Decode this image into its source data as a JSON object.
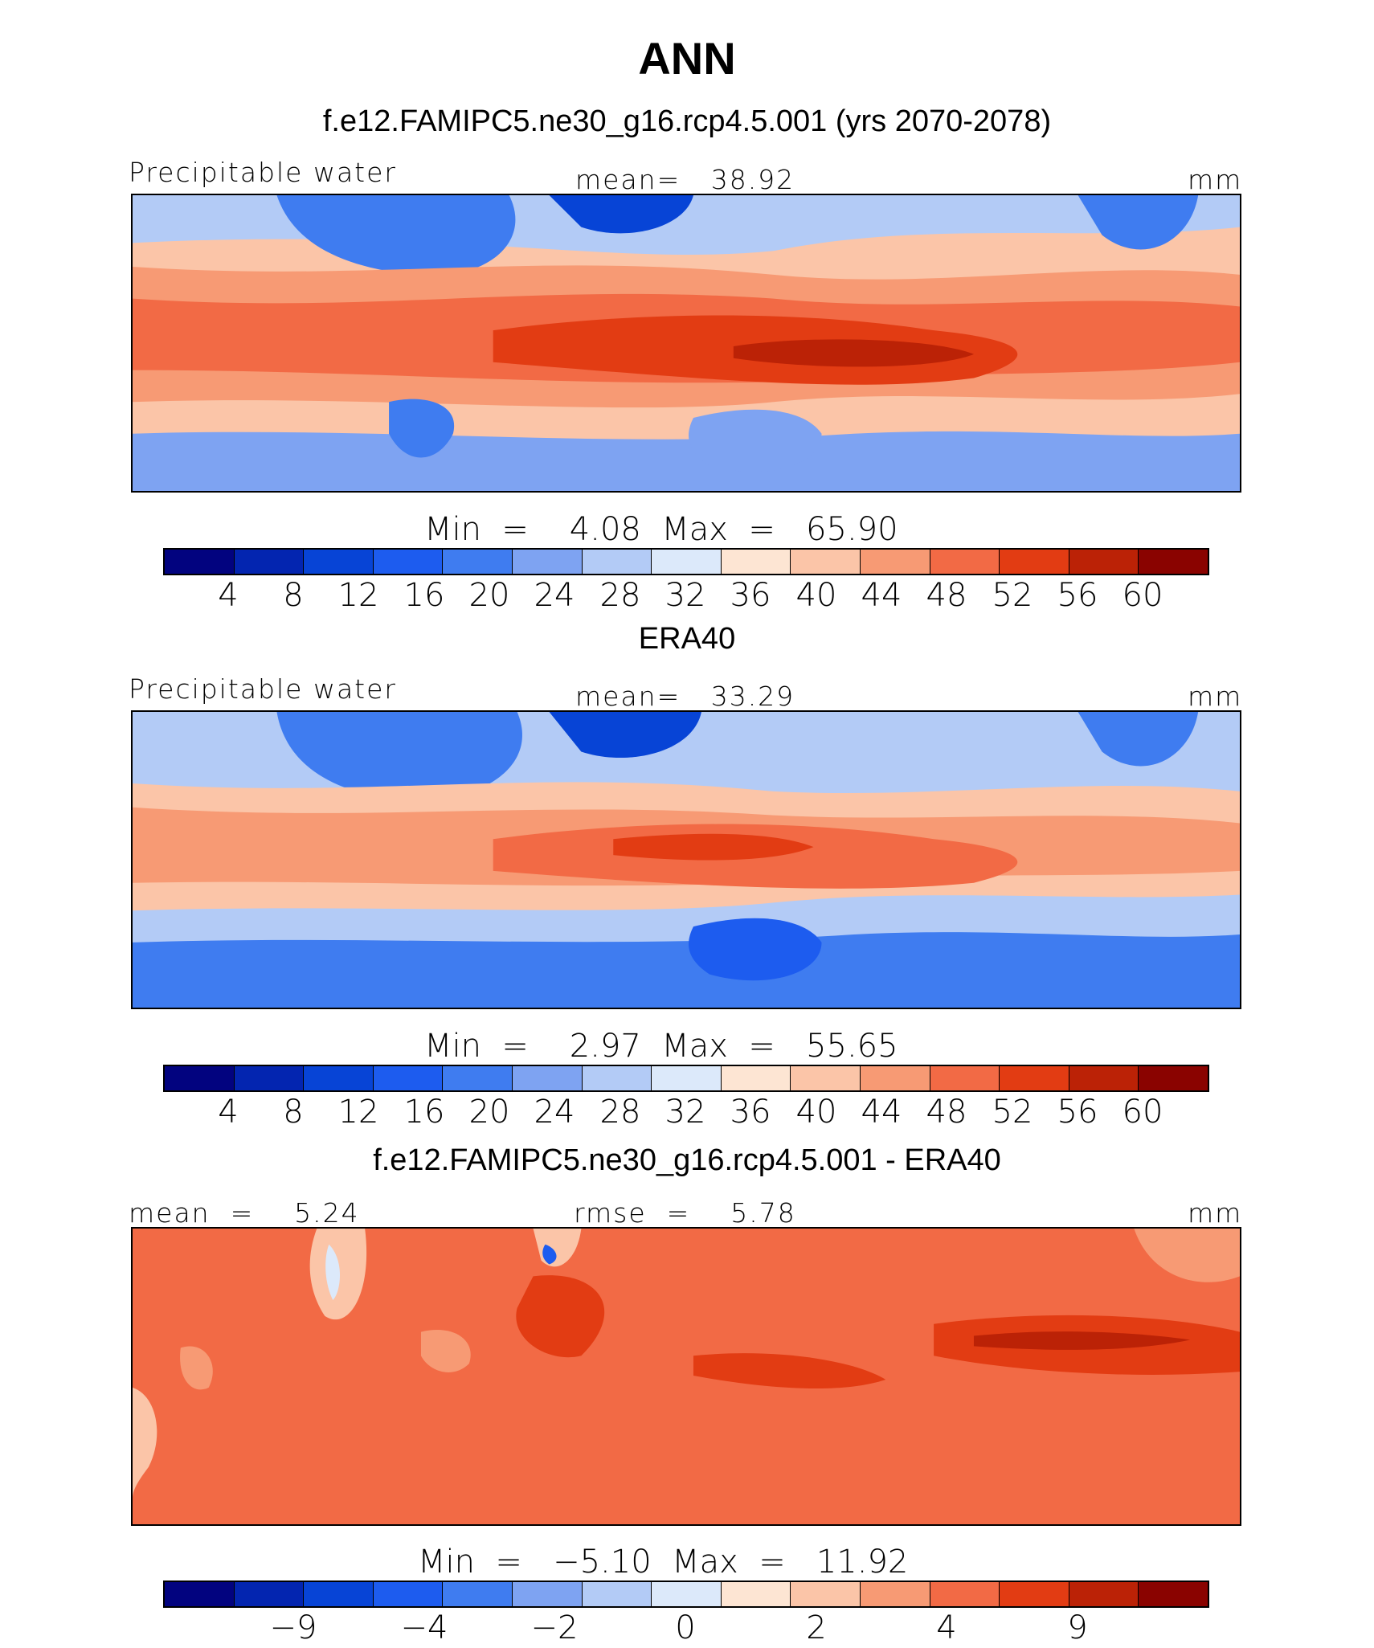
{
  "title": "ANN",
  "panels": [
    {
      "subtitle": "f.e12.FAMIPC5.ne30_g16.rcp4.5.001 (yrs 2070-2078)",
      "left_label": "Precipitable water",
      "center_label": "mean=   38.92",
      "right_label": "mm",
      "min_max": "Min  =    4.08  Max  =   65.90",
      "ticks": [
        "4",
        "8",
        "12",
        "16",
        "20",
        "24",
        "28",
        "32",
        "36",
        "40",
        "44",
        "48",
        "52",
        "56",
        "60"
      ]
    },
    {
      "subtitle": "ERA40",
      "left_label": "Precipitable water",
      "center_label": "mean=   33.29",
      "right_label": "mm",
      "min_max": "Min  =    2.97  Max  =   55.65",
      "ticks": [
        "4",
        "8",
        "12",
        "16",
        "20",
        "24",
        "28",
        "32",
        "36",
        "40",
        "44",
        "48",
        "52",
        "56",
        "60"
      ]
    },
    {
      "subtitle": "f.e12.FAMIPC5.ne30_g16.rcp4.5.001 - ERA40",
      "left_label": "mean  =    5.24",
      "center_label": "rmse  =    5.78",
      "right_label": "mm",
      "min_max": "Min  =   −5.10  Max  =   11.92",
      "ticks": [
        "−9",
        "−4",
        "−2",
        "0",
        "2",
        "4",
        "9"
      ]
    }
  ],
  "colorbar_colors": [
    "#02037f",
    "#0325b0",
    "#0744d6",
    "#1d5cef",
    "#3f7cf0",
    "#7ea3f2",
    "#b3cbf6",
    "#dce9fa",
    "#fde5d3",
    "#fbc5a8",
    "#f79a74",
    "#f26a45",
    "#e23c13",
    "#bb2206",
    "#8a0300"
  ]
}
